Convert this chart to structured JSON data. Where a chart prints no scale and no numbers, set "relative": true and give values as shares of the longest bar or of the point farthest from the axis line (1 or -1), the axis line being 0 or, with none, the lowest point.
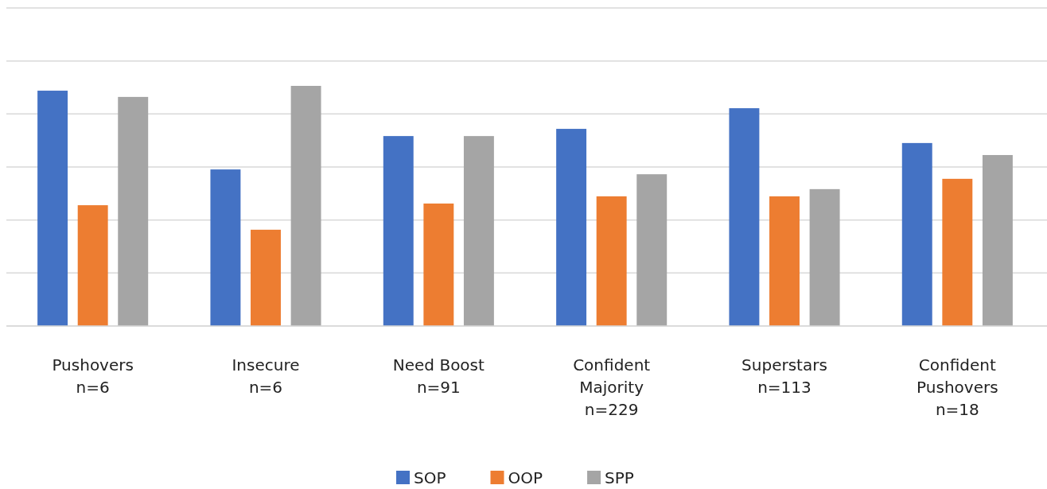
{
  "chart_data": {
    "type": "bar",
    "relative": true,
    "categories": [
      "Pushovers\nn=6",
      "Insecure\nn=6",
      "Need Boost\nn=91",
      "Confident\nMajority\nn=229",
      "Superstars\nn=113",
      "Confident\nPushovers\nn=18"
    ],
    "series": [
      {
        "name": "SOP",
        "color": "#4472c4",
        "values": [
          0.98,
          0.652,
          0.791,
          0.821,
          0.907,
          0.762
        ]
      },
      {
        "name": "OOP",
        "color": "#ed7d31",
        "values": [
          0.503,
          0.401,
          0.51,
          0.54,
          0.54,
          0.613
        ]
      },
      {
        "name": "SPP",
        "color": "#a5a5a5",
        "values": [
          0.954,
          1,
          0.791,
          0.632,
          0.57,
          0.712
        ]
      }
    ],
    "grid": true,
    "legend": "bottom"
  }
}
